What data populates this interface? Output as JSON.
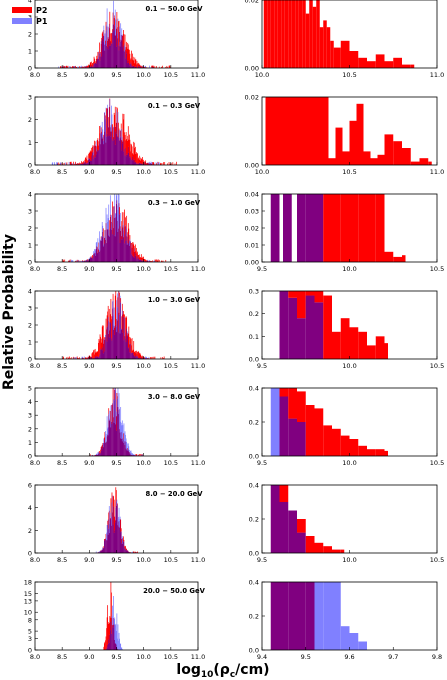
{
  "figure": {
    "ylabel": "Relative Probability",
    "xlabel": "log₁₀(ρ_c/cm)",
    "xlabel_main": "log",
    "xlabel_sub": "10",
    "xlabel_rest": "(ρ",
    "xlabel_sub2": "c",
    "xlabel_end": "/cm)",
    "legend": {
      "p2": "P2",
      "p1": "P1"
    }
  },
  "colors": {
    "p2": "#ff0000",
    "p1": "#8080ff",
    "overlap": "#800080"
  },
  "chart_data": [
    {
      "type": "bar",
      "panel": "left",
      "annotation": "0.1 − 50.0 GeV",
      "xlim": [
        8.0,
        11.0
      ],
      "ylim": [
        0,
        4
      ],
      "xticks": [
        "8.0",
        "8.5",
        "9.0",
        "9.5",
        "10.0",
        "10.5",
        "11.0"
      ],
      "yticks": [
        "0",
        "1",
        "2",
        "3",
        "4"
      ],
      "series": [
        {
          "name": "P2",
          "center": 9.45,
          "width": 0.2,
          "peak": 3.2,
          "min_x": 8.4,
          "max_x": 10.5
        },
        {
          "name": "P1",
          "center": 9.42,
          "width": 0.15,
          "peak": 3.6,
          "min_x": 8.4,
          "max_x": 10.2
        }
      ]
    },
    {
      "type": "bar",
      "panel": "right",
      "xlim": [
        10.0,
        11.0
      ],
      "ylim": [
        0,
        0.02
      ],
      "xticks": [
        "10.0",
        "10.5",
        "11.0"
      ],
      "yticks": [
        "0.00",
        "0.02"
      ],
      "series": [
        {
          "name": "P2",
          "x": [
            10.01,
            10.03,
            10.05,
            10.07,
            10.09,
            10.11,
            10.13,
            10.15,
            10.17,
            10.19,
            10.21,
            10.23,
            10.25,
            10.27,
            10.29,
            10.31,
            10.33,
            10.35,
            10.37,
            10.39,
            10.41,
            10.45,
            10.5,
            10.55,
            10.6,
            10.65,
            10.7,
            10.75,
            10.8,
            10.85
          ],
          "values": [
            0.02,
            0.02,
            0.02,
            0.02,
            0.02,
            0.02,
            0.02,
            0.02,
            0.02,
            0.02,
            0.02,
            0.02,
            0.016,
            0.02,
            0.018,
            0.02,
            0.012,
            0.014,
            0.012,
            0.008,
            0.006,
            0.008,
            0.005,
            0.003,
            0.002,
            0.004,
            0.002,
            0.003,
            0.001,
            0.001
          ]
        }
      ]
    },
    {
      "type": "bar",
      "panel": "left",
      "annotation": "0.1 − 0.3 GeV",
      "xlim": [
        8.0,
        11.0
      ],
      "ylim": [
        0,
        3
      ],
      "xticks": [
        "8.0",
        "8.5",
        "9.0",
        "9.5",
        "10.0",
        "10.5",
        "11.0"
      ],
      "yticks": [
        "0",
        "1",
        "2",
        "3"
      ],
      "series": [
        {
          "name": "P2",
          "center": 9.45,
          "width": 0.25,
          "peak": 2.6,
          "min_x": 8.4,
          "max_x": 10.6
        },
        {
          "name": "P1",
          "center": 9.4,
          "width": 0.2,
          "peak": 2.4,
          "min_x": 8.3,
          "max_x": 10.3
        }
      ]
    },
    {
      "type": "bar",
      "panel": "right",
      "xlim": [
        10.0,
        11.0
      ],
      "ylim": [
        0,
        0.02
      ],
      "xticks": [
        "10.0",
        "10.5",
        "11.0"
      ],
      "yticks": [
        "0.00",
        "0.02"
      ],
      "series": [
        {
          "name": "P2",
          "x": [
            10.02,
            10.06,
            10.1,
            10.14,
            10.18,
            10.22,
            10.26,
            10.3,
            10.34,
            10.38,
            10.42,
            10.46,
            10.5,
            10.54,
            10.58,
            10.62,
            10.66,
            10.7,
            10.75,
            10.8,
            10.85,
            10.9,
            10.95
          ],
          "values": [
            0.02,
            0.02,
            0.02,
            0.02,
            0.02,
            0.02,
            0.02,
            0.02,
            0.02,
            0.002,
            0.011,
            0.004,
            0.013,
            0.018,
            0.004,
            0.002,
            0.003,
            0.009,
            0.007,
            0.005,
            0.001,
            0.002,
            0.001
          ]
        }
      ]
    },
    {
      "type": "bar",
      "panel": "left",
      "annotation": "0.3 − 1.0 GeV",
      "xlim": [
        8.0,
        11.0
      ],
      "ylim": [
        0,
        4
      ],
      "xticks": [
        "8.0",
        "8.5",
        "9.0",
        "9.5",
        "10.0",
        "10.5",
        "11.0"
      ],
      "yticks": [
        "0",
        "1",
        "2",
        "3",
        "4"
      ],
      "series": [
        {
          "name": "P2",
          "center": 9.5,
          "width": 0.22,
          "peak": 3.2,
          "min_x": 8.5,
          "max_x": 10.4
        },
        {
          "name": "P1",
          "center": 9.45,
          "width": 0.2,
          "peak": 3.6,
          "min_x": 8.6,
          "max_x": 10.2
        }
      ]
    },
    {
      "type": "bar",
      "panel": "right",
      "xlim": [
        9.5,
        10.5
      ],
      "ylim": [
        0,
        0.04
      ],
      "xticks": [
        "9.5",
        "10.0",
        "10.5"
      ],
      "yticks": [
        "0.00",
        "0.01",
        "0.02",
        "0.03",
        "0.04"
      ],
      "series": [
        {
          "name": "P2",
          "x": [
            9.55,
            9.62,
            9.7,
            9.75,
            9.8,
            9.85,
            9.9,
            9.95,
            10.0,
            10.05,
            10.1,
            10.15,
            10.2,
            10.25,
            10.3
          ],
          "values": [
            0.04,
            0.04,
            0.04,
            0.04,
            0.04,
            0.04,
            0.04,
            0.04,
            0.04,
            0.04,
            0.04,
            0.04,
            0.006,
            0.003,
            0.004
          ]
        },
        {
          "name": "P1",
          "x": [
            9.55,
            9.62,
            9.7,
            9.75,
            9.8
          ],
          "values": [
            0.04,
            0.04,
            0.04,
            0.04,
            0.04
          ]
        }
      ]
    },
    {
      "type": "bar",
      "panel": "left",
      "annotation": "1.0 − 3.0 GeV",
      "xlim": [
        8.0,
        11.0
      ],
      "ylim": [
        0,
        4
      ],
      "xticks": [
        "8.0",
        "8.5",
        "9.0",
        "9.5",
        "10.0",
        "10.5",
        "11.0"
      ],
      "yticks": [
        "0",
        "1",
        "2",
        "3",
        "4"
      ],
      "series": [
        {
          "name": "P2",
          "center": 9.48,
          "width": 0.2,
          "peak": 3.5,
          "min_x": 8.5,
          "max_x": 10.4
        },
        {
          "name": "P1",
          "center": 9.5,
          "width": 0.15,
          "peak": 3.6,
          "min_x": 8.7,
          "max_x": 10.1
        }
      ]
    },
    {
      "type": "bar",
      "panel": "right",
      "xlim": [
        9.5,
        10.5
      ],
      "ylim": [
        0,
        0.3
      ],
      "xticks": [
        "9.5",
        "10.0",
        "10.5"
      ],
      "yticks": [
        "0.0",
        "0.1",
        "0.2",
        "0.3"
      ],
      "series": [
        {
          "name": "P2",
          "x": [
            9.6,
            9.65,
            9.7,
            9.75,
            9.8,
            9.85,
            9.9,
            9.95,
            10.0,
            10.05,
            10.1,
            10.15,
            10.2
          ],
          "values": [
            0.3,
            0.3,
            0.3,
            0.3,
            0.3,
            0.28,
            0.12,
            0.18,
            0.14,
            0.12,
            0.06,
            0.1,
            0.07
          ]
        },
        {
          "name": "P1",
          "x": [
            9.6,
            9.65,
            9.7,
            9.75,
            9.8
          ],
          "values": [
            0.3,
            0.27,
            0.18,
            0.28,
            0.25
          ]
        }
      ]
    },
    {
      "type": "bar",
      "panel": "left",
      "annotation": "3.0 − 8.0 GeV",
      "xlim": [
        8.0,
        11.0
      ],
      "ylim": [
        0,
        5
      ],
      "xticks": [
        "8.0",
        "8.5",
        "9.0",
        "9.5",
        "10.0",
        "10.5",
        "11.0"
      ],
      "yticks": [
        "0",
        "1",
        "2",
        "3",
        "4",
        "5"
      ],
      "series": [
        {
          "name": "P2",
          "center": 9.45,
          "width": 0.12,
          "peak": 4.5,
          "min_x": 9.0,
          "max_x": 10.0
        },
        {
          "name": "P1",
          "center": 9.47,
          "width": 0.13,
          "peak": 4.6,
          "min_x": 9.0,
          "max_x": 10.0
        }
      ]
    },
    {
      "type": "bar",
      "panel": "right",
      "xlim": [
        9.5,
        10.5
      ],
      "ylim": [
        0,
        0.4
      ],
      "xticks": [
        "9.5",
        "10.0",
        "10.5"
      ],
      "yticks": [
        "0.0",
        "0.2",
        "0.4"
      ],
      "series": [
        {
          "name": "P2",
          "x": [
            9.6,
            9.65,
            9.7,
            9.75,
            9.8,
            9.85,
            9.9,
            9.95,
            10.0,
            10.05,
            10.1,
            10.15,
            10.2
          ],
          "values": [
            0.4,
            0.4,
            0.38,
            0.3,
            0.28,
            0.18,
            0.16,
            0.12,
            0.1,
            0.06,
            0.04,
            0.04,
            0.03
          ]
        },
        {
          "name": "P1",
          "x": [
            9.55,
            9.6,
            9.65,
            9.7
          ],
          "values": [
            0.4,
            0.35,
            0.22,
            0.2
          ]
        }
      ]
    },
    {
      "type": "bar",
      "panel": "left",
      "annotation": "8.0 − 20.0 GeV",
      "xlim": [
        8.0,
        11.0
      ],
      "ylim": [
        0,
        6
      ],
      "xticks": [
        "8.0",
        "8.5",
        "9.0",
        "9.5",
        "10.0",
        "10.5",
        "11.0"
      ],
      "yticks": [
        "0",
        "2",
        "4",
        "6"
      ],
      "series": [
        {
          "name": "P2",
          "center": 9.45,
          "width": 0.1,
          "peak": 5.2,
          "min_x": 9.1,
          "max_x": 9.9
        },
        {
          "name": "P1",
          "center": 9.45,
          "width": 0.1,
          "peak": 5.0,
          "min_x": 9.1,
          "max_x": 9.9
        }
      ]
    },
    {
      "type": "bar",
      "panel": "right",
      "xlim": [
        9.5,
        10.5
      ],
      "ylim": [
        0,
        0.4
      ],
      "xticks": [
        "9.5",
        "10.0",
        "10.5"
      ],
      "yticks": [
        "0.0",
        "0.2",
        "0.4"
      ],
      "series": [
        {
          "name": "P2",
          "x": [
            9.55,
            9.6,
            9.65,
            9.7,
            9.75,
            9.8,
            9.85,
            9.9,
            9.95
          ],
          "values": [
            0.4,
            0.4,
            0.25,
            0.2,
            0.1,
            0.06,
            0.04,
            0.02,
            0.02
          ]
        },
        {
          "name": "P1",
          "x": [
            9.55,
            9.6,
            9.65,
            9.7
          ],
          "values": [
            0.4,
            0.3,
            0.25,
            0.12
          ]
        }
      ]
    },
    {
      "type": "bar",
      "panel": "left",
      "annotation": "20.0 − 50.0 GeV",
      "xlim": [
        8.0,
        11.0
      ],
      "ylim": [
        0,
        18
      ],
      "xticks": [
        "8.0",
        "8.5",
        "9.0",
        "9.5",
        "10.0",
        "10.5",
        "11.0"
      ],
      "yticks": [
        "0",
        "3",
        "5",
        "8",
        "10",
        "13",
        "15",
        "18"
      ],
      "series": [
        {
          "name": "P2",
          "center": 9.38,
          "width": 0.05,
          "peak": 17,
          "min_x": 9.25,
          "max_x": 9.55
        },
        {
          "name": "P1",
          "center": 9.45,
          "width": 0.06,
          "peak": 12,
          "min_x": 9.3,
          "max_x": 9.6
        }
      ]
    },
    {
      "type": "bar",
      "panel": "right",
      "xlim": [
        9.4,
        9.8
      ],
      "ylim": [
        0,
        0.4
      ],
      "xticks": [
        "9.4",
        "9.5",
        "9.6",
        "9.7",
        "9.8"
      ],
      "yticks": [
        "0.0",
        "0.2",
        "0.4"
      ],
      "series": [
        {
          "name": "P2",
          "x": [
            9.42,
            9.44,
            9.46,
            9.48,
            9.5
          ],
          "values": [
            0.4,
            0.4,
            0.4,
            0.4,
            0.4
          ]
        },
        {
          "name": "P1",
          "x": [
            9.42,
            9.44,
            9.46,
            9.48,
            9.5,
            9.52,
            9.54,
            9.56,
            9.58,
            9.6,
            9.62
          ],
          "values": [
            0.4,
            0.4,
            0.4,
            0.4,
            0.4,
            0.4,
            0.4,
            0.4,
            0.14,
            0.1,
            0.05
          ]
        }
      ]
    }
  ]
}
